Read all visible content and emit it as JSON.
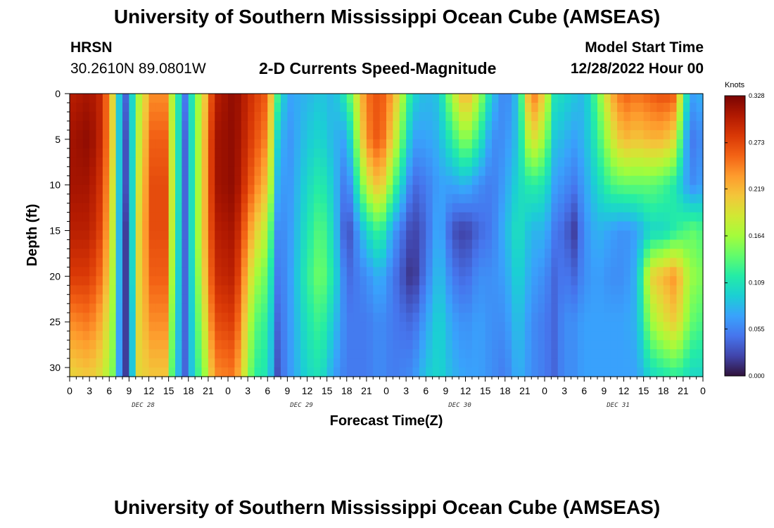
{
  "header": {
    "title": "University of Southern Mississippi Ocean Cube (AMSEAS)",
    "station": "HRSN",
    "coords": "30.2610N  89.0801W",
    "subtitle": "2-D Currents Speed-Magnitude",
    "start_label": "Model Start Time",
    "start_value": "12/28/2022 Hour 00"
  },
  "footer": {
    "title": "University of Southern Mississippi Ocean Cube (AMSEAS)"
  },
  "chart_data": {
    "type": "heatmap",
    "xlabel": "Forecast Time(Z)",
    "ylabel": "Depth (ft)",
    "x_hours_range": [
      0,
      96
    ],
    "ylim": [
      0,
      31
    ],
    "y_ticks": [
      "0",
      "5",
      "10",
      "15",
      "20",
      "25",
      "30"
    ],
    "y_tick_values": [
      0,
      5,
      10,
      15,
      20,
      25,
      30
    ],
    "x_tick_labels": [
      "0",
      "3",
      "6",
      "9",
      "12",
      "15",
      "18",
      "21",
      "0",
      "3",
      "6",
      "9",
      "12",
      "15",
      "18",
      "21",
      "0",
      "3",
      "6",
      "9",
      "12",
      "15",
      "18",
      "21",
      "0",
      "3",
      "6",
      "9",
      "12",
      "15",
      "18",
      "21",
      "0"
    ],
    "date_labels": [
      {
        "label": "DEC 28",
        "hour": 12
      },
      {
        "label": "DEC 29",
        "hour": 36
      },
      {
        "label": "DEC 30",
        "hour": 60
      },
      {
        "label": "DEC 31",
        "hour": 84
      }
    ],
    "colorbar": {
      "unit": "Knots",
      "ticks": [
        "0.328",
        "0.273",
        "0.219",
        "0.164",
        "0.109",
        "0.055",
        "0.000"
      ],
      "tick_values": [
        0.328,
        0.273,
        0.219,
        0.164,
        0.109,
        0.055,
        0.0
      ],
      "min": 0.0,
      "max": 0.328,
      "colors": [
        "#30123b",
        "#4145ab",
        "#4675ed",
        "#39a2fc",
        "#1bcfd4",
        "#24eca6",
        "#61fc6c",
        "#a4fc3b",
        "#d1e834",
        "#f3c63a",
        "#fe9b2d",
        "#f36315",
        "#d93806",
        "#b11901",
        "#7a0402"
      ]
    },
    "columns": [
      {
        "hour": 0,
        "v": [
          0.3,
          0.31,
          0.31,
          0.3,
          0.28,
          0.24,
          0.2
        ]
      },
      {
        "hour": 3,
        "v": [
          0.31,
          0.32,
          0.31,
          0.3,
          0.28,
          0.25,
          0.21
        ]
      },
      {
        "hour": 5,
        "v": [
          0.29,
          0.29,
          0.28,
          0.27,
          0.25,
          0.22,
          0.19
        ]
      },
      {
        "hour": 6.5,
        "v": [
          0.2,
          0.2,
          0.19,
          0.18,
          0.17,
          0.16,
          0.15
        ]
      },
      {
        "hour": 7.5,
        "v": [
          0.09,
          0.09,
          0.09,
          0.08,
          0.08,
          0.07,
          0.07
        ]
      },
      {
        "hour": 8.5,
        "v": [
          0.04,
          0.03,
          0.03,
          0.02,
          0.02,
          0.02,
          0.02
        ]
      },
      {
        "hour": 9.5,
        "v": [
          0.1,
          0.1,
          0.1,
          0.1,
          0.1,
          0.09,
          0.09
        ]
      },
      {
        "hour": 10.5,
        "v": [
          0.17,
          0.18,
          0.19,
          0.2,
          0.2,
          0.2,
          0.2
        ]
      },
      {
        "hour": 12.5,
        "v": [
          0.24,
          0.26,
          0.27,
          0.27,
          0.26,
          0.24,
          0.21
        ]
      },
      {
        "hour": 14.5,
        "v": [
          0.24,
          0.26,
          0.27,
          0.27,
          0.26,
          0.24,
          0.21
        ]
      },
      {
        "hour": 16,
        "v": [
          0.14,
          0.14,
          0.14,
          0.13,
          0.12,
          0.11,
          0.1
        ]
      },
      {
        "hour": 17.5,
        "v": [
          0.05,
          0.04,
          0.04,
          0.04,
          0.04,
          0.04,
          0.04
        ]
      },
      {
        "hour": 19,
        "v": [
          0.14,
          0.14,
          0.14,
          0.14,
          0.13,
          0.12,
          0.11
        ]
      },
      {
        "hour": 20.5,
        "v": [
          0.21,
          0.22,
          0.22,
          0.22,
          0.21,
          0.19,
          0.16
        ]
      },
      {
        "hour": 22,
        "v": [
          0.3,
          0.31,
          0.31,
          0.3,
          0.29,
          0.27,
          0.24
        ]
      },
      {
        "hour": 25,
        "v": [
          0.32,
          0.32,
          0.32,
          0.31,
          0.3,
          0.28,
          0.25
        ]
      },
      {
        "hour": 28,
        "v": [
          0.28,
          0.27,
          0.25,
          0.21,
          0.17,
          0.14,
          0.12
        ]
      },
      {
        "hour": 30,
        "v": [
          0.26,
          0.24,
          0.21,
          0.17,
          0.14,
          0.12,
          0.11
        ]
      },
      {
        "hour": 31.5,
        "v": [
          0.13,
          0.1,
          0.08,
          0.06,
          0.05,
          0.04,
          0.03
        ]
      },
      {
        "hour": 33,
        "v": [
          0.07,
          0.06,
          0.06,
          0.06,
          0.06,
          0.06,
          0.06
        ]
      },
      {
        "hour": 36,
        "v": [
          0.08,
          0.09,
          0.1,
          0.11,
          0.12,
          0.11,
          0.1
        ]
      },
      {
        "hour": 38,
        "v": [
          0.09,
          0.1,
          0.12,
          0.14,
          0.15,
          0.13,
          0.11
        ]
      },
      {
        "hour": 40,
        "v": [
          0.08,
          0.08,
          0.09,
          0.1,
          0.11,
          0.09,
          0.07
        ]
      },
      {
        "hour": 42,
        "v": [
          0.12,
          0.07,
          0.04,
          0.02,
          0.04,
          0.05,
          0.05
        ]
      },
      {
        "hour": 45,
        "v": [
          0.25,
          0.24,
          0.18,
          0.1,
          0.06,
          0.05,
          0.05
        ]
      },
      {
        "hour": 47,
        "v": [
          0.27,
          0.27,
          0.22,
          0.13,
          0.08,
          0.06,
          0.06
        ]
      },
      {
        "hour": 49,
        "v": [
          0.23,
          0.2,
          0.14,
          0.07,
          0.05,
          0.05,
          0.05
        ]
      },
      {
        "hour": 52,
        "v": [
          0.1,
          0.07,
          0.04,
          0.02,
          0.01,
          0.04,
          0.06
        ]
      },
      {
        "hour": 54,
        "v": [
          0.08,
          0.07,
          0.05,
          0.04,
          0.05,
          0.07,
          0.09
        ]
      },
      {
        "hour": 56,
        "v": [
          0.09,
          0.08,
          0.07,
          0.08,
          0.09,
          0.1,
          0.1
        ]
      },
      {
        "hour": 58,
        "v": [
          0.17,
          0.12,
          0.07,
          0.03,
          0.05,
          0.07,
          0.08
        ]
      },
      {
        "hour": 60,
        "v": [
          0.23,
          0.16,
          0.08,
          0.02,
          0.04,
          0.06,
          0.07
        ]
      },
      {
        "hour": 62,
        "v": [
          0.17,
          0.12,
          0.06,
          0.04,
          0.06,
          0.07,
          0.07
        ]
      },
      {
        "hour": 64,
        "v": [
          0.09,
          0.06,
          0.05,
          0.05,
          0.06,
          0.06,
          0.06
        ]
      },
      {
        "hour": 66,
        "v": [
          0.05,
          0.06,
          0.07,
          0.08,
          0.07,
          0.06,
          0.05
        ]
      },
      {
        "hour": 68,
        "v": [
          0.09,
          0.09,
          0.1,
          0.11,
          0.1,
          0.09,
          0.08
        ]
      },
      {
        "hour": 70,
        "v": [
          0.26,
          0.2,
          0.12,
          0.08,
          0.07,
          0.06,
          0.06
        ]
      },
      {
        "hour": 72,
        "v": [
          0.2,
          0.16,
          0.11,
          0.08,
          0.06,
          0.05,
          0.05
        ]
      },
      {
        "hour": 73.5,
        "v": [
          0.11,
          0.09,
          0.07,
          0.05,
          0.04,
          0.04,
          0.04
        ]
      },
      {
        "hour": 75,
        "v": [
          0.1,
          0.08,
          0.06,
          0.04,
          0.05,
          0.06,
          0.06
        ]
      },
      {
        "hour": 76.5,
        "v": [
          0.09,
          0.07,
          0.05,
          0.02,
          0.04,
          0.06,
          0.06
        ]
      },
      {
        "hour": 78,
        "v": [
          0.08,
          0.08,
          0.07,
          0.06,
          0.06,
          0.07,
          0.07
        ]
      },
      {
        "hour": 80,
        "v": [
          0.14,
          0.12,
          0.1,
          0.08,
          0.07,
          0.07,
          0.07
        ]
      },
      {
        "hour": 82,
        "v": [
          0.22,
          0.18,
          0.13,
          0.07,
          0.06,
          0.07,
          0.07
        ]
      },
      {
        "hour": 84,
        "v": [
          0.26,
          0.22,
          0.14,
          0.06,
          0.06,
          0.07,
          0.07
        ]
      },
      {
        "hour": 86,
        "v": [
          0.25,
          0.21,
          0.14,
          0.07,
          0.08,
          0.08,
          0.07
        ]
      },
      {
        "hour": 88,
        "v": [
          0.26,
          0.22,
          0.14,
          0.1,
          0.2,
          0.16,
          0.1
        ]
      },
      {
        "hour": 90,
        "v": [
          0.27,
          0.22,
          0.13,
          0.1,
          0.22,
          0.19,
          0.11
        ]
      },
      {
        "hour": 92,
        "v": [
          0.26,
          0.19,
          0.11,
          0.12,
          0.24,
          0.21,
          0.12
        ]
      },
      {
        "hour": 93,
        "v": [
          0.13,
          0.09,
          0.08,
          0.13,
          0.19,
          0.17,
          0.11
        ]
      },
      {
        "hour": 94.5,
        "v": [
          0.07,
          0.05,
          0.06,
          0.14,
          0.16,
          0.14,
          0.1
        ]
      },
      {
        "hour": 96,
        "v": [
          0.08,
          0.06,
          0.07,
          0.13,
          0.15,
          0.13,
          0.1
        ]
      }
    ],
    "column_depths": [
      0,
      5,
      10,
      15,
      20,
      25,
      31
    ]
  }
}
